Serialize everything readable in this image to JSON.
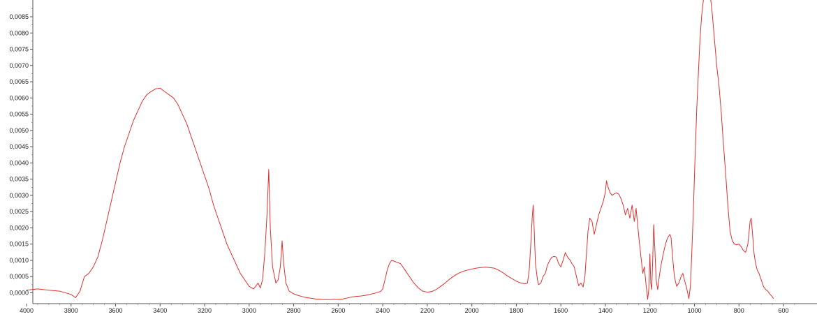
{
  "chart_data": {
    "type": "line",
    "title": "",
    "xlabel": "",
    "ylabel": "",
    "xlim": [
      4000,
      550
    ],
    "ylim": [
      -0.00025,
      0.0095
    ],
    "x_reversed": true,
    "grid": false,
    "legend": "none",
    "x_ticks": [
      4000,
      3800,
      3600,
      3400,
      3200,
      3000,
      2800,
      2600,
      2400,
      2200,
      2000,
      1800,
      1600,
      1400,
      1200,
      1000,
      800,
      600
    ],
    "x_tick_labels": [
      "4000",
      "3800",
      "3600",
      "3400",
      "3200",
      "3000",
      "2800",
      "2600",
      "2400",
      "2200",
      "2000",
      "1800",
      "1600",
      "1400",
      "1200",
      "1000",
      "800",
      "600"
    ],
    "y_ticks": [
      0.0,
      0.0005,
      0.001,
      0.0015,
      0.002,
      0.0025,
      0.003,
      0.0035,
      0.004,
      0.0045,
      0.005,
      0.0055,
      0.006,
      0.0065,
      0.007,
      0.0075,
      0.008,
      0.0085
    ],
    "y_tick_labels": [
      "0,0000",
      "0,0005",
      "0,0010",
      "0,0015",
      "0,0020",
      "0,0025",
      "0,0030",
      "0,0035",
      "0,0040",
      "0,0045",
      "0,0050",
      "0,0055",
      "0,0060",
      "0,0065",
      "0,0070",
      "0,0075",
      "0,0080",
      "0,0085"
    ],
    "series": [
      {
        "color": "#e03030",
        "points": [
          [
            4000,
            8e-05
          ],
          [
            3950,
            0.00012
          ],
          [
            3900,
            8e-05
          ],
          [
            3850,
            5e-05
          ],
          [
            3800,
            -5e-05
          ],
          [
            3780,
            -0.00015
          ],
          [
            3760,
            5e-05
          ],
          [
            3740,
            0.0005
          ],
          [
            3720,
            0.0006
          ],
          [
            3700,
            0.0008
          ],
          [
            3680,
            0.0011
          ],
          [
            3660,
            0.0016
          ],
          [
            3640,
            0.0022
          ],
          [
            3620,
            0.0028
          ],
          [
            3600,
            0.0034
          ],
          [
            3580,
            0.004
          ],
          [
            3560,
            0.0045
          ],
          [
            3540,
            0.0049
          ],
          [
            3520,
            0.0053
          ],
          [
            3500,
            0.0056
          ],
          [
            3480,
            0.0059
          ],
          [
            3460,
            0.0061
          ],
          [
            3440,
            0.0062
          ],
          [
            3420,
            0.00628
          ],
          [
            3400,
            0.0063
          ],
          [
            3380,
            0.0062
          ],
          [
            3360,
            0.0061
          ],
          [
            3340,
            0.006
          ],
          [
            3320,
            0.0058
          ],
          [
            3300,
            0.0055
          ],
          [
            3280,
            0.0052
          ],
          [
            3260,
            0.0048
          ],
          [
            3240,
            0.0044
          ],
          [
            3220,
            0.004
          ],
          [
            3200,
            0.0036
          ],
          [
            3180,
            0.0032
          ],
          [
            3160,
            0.0027
          ],
          [
            3140,
            0.0023
          ],
          [
            3120,
            0.0019
          ],
          [
            3100,
            0.0015
          ],
          [
            3080,
            0.0012
          ],
          [
            3060,
            0.0009
          ],
          [
            3040,
            0.0006
          ],
          [
            3020,
            0.0004
          ],
          [
            3000,
            0.0002
          ],
          [
            2980,
            0.00012
          ],
          [
            2960,
            0.0003
          ],
          [
            2950,
            0.00015
          ],
          [
            2940,
            0.0004
          ],
          [
            2930,
            0.0012
          ],
          [
            2920,
            0.0024
          ],
          [
            2912,
            0.0038
          ],
          [
            2905,
            0.002
          ],
          [
            2895,
            0.0008
          ],
          [
            2880,
            0.0003
          ],
          [
            2870,
            0.0004
          ],
          [
            2860,
            0.0008
          ],
          [
            2852,
            0.0016
          ],
          [
            2845,
            0.0009
          ],
          [
            2835,
            0.0003
          ],
          [
            2820,
            5e-05
          ],
          [
            2800,
            -3e-05
          ],
          [
            2780,
            -8e-05
          ],
          [
            2760,
            -0.00012
          ],
          [
            2740,
            -0.00015
          ],
          [
            2720,
            -0.00017
          ],
          [
            2700,
            -0.00019
          ],
          [
            2680,
            -0.0002
          ],
          [
            2660,
            -0.00021
          ],
          [
            2640,
            -0.00021
          ],
          [
            2620,
            -0.0002
          ],
          [
            2600,
            -0.0002
          ],
          [
            2580,
            -0.00019
          ],
          [
            2560,
            -0.00016
          ],
          [
            2540,
            -0.00013
          ],
          [
            2520,
            -0.00011
          ],
          [
            2500,
            -0.0001
          ],
          [
            2480,
            -8e-05
          ],
          [
            2460,
            -5e-05
          ],
          [
            2440,
            -2e-05
          ],
          [
            2420,
            2e-05
          ],
          [
            2410,
            4e-05
          ],
          [
            2400,
            0.00012
          ],
          [
            2390,
            0.0004
          ],
          [
            2380,
            0.0007
          ],
          [
            2370,
            0.0009
          ],
          [
            2360,
            0.001
          ],
          [
            2350,
            0.00098
          ],
          [
            2340,
            0.00095
          ],
          [
            2320,
            0.0009
          ],
          [
            2300,
            0.0007
          ],
          [
            2280,
            0.0005
          ],
          [
            2260,
            0.0003
          ],
          [
            2240,
            0.00015
          ],
          [
            2220,
            5e-05
          ],
          [
            2200,
            2e-05
          ],
          [
            2180,
            4e-05
          ],
          [
            2160,
            0.0001
          ],
          [
            2140,
            0.0002
          ],
          [
            2120,
            0.0003
          ],
          [
            2100,
            0.00042
          ],
          [
            2080,
            0.00052
          ],
          [
            2060,
            0.0006
          ],
          [
            2040,
            0.00066
          ],
          [
            2020,
            0.0007
          ],
          [
            2000,
            0.00073
          ],
          [
            1980,
            0.00076
          ],
          [
            1960,
            0.00078
          ],
          [
            1940,
            0.00079
          ],
          [
            1920,
            0.00078
          ],
          [
            1900,
            0.00076
          ],
          [
            1880,
            0.0007
          ],
          [
            1860,
            0.00062
          ],
          [
            1840,
            0.00052
          ],
          [
            1820,
            0.00044
          ],
          [
            1800,
            0.00036
          ],
          [
            1780,
            0.0003
          ],
          [
            1760,
            0.00028
          ],
          [
            1750,
            0.0003
          ],
          [
            1742,
            0.0007
          ],
          [
            1735,
            0.0015
          ],
          [
            1728,
            0.0024
          ],
          [
            1724,
            0.0027
          ],
          [
            1720,
            0.002
          ],
          [
            1714,
            0.0009
          ],
          [
            1705,
            0.0004
          ],
          [
            1700,
            0.00025
          ],
          [
            1690,
            0.0003
          ],
          [
            1680,
            0.0005
          ],
          [
            1670,
            0.0006
          ],
          [
            1660,
            0.00085
          ],
          [
            1650,
            0.001
          ],
          [
            1640,
            0.0011
          ],
          [
            1630,
            0.00112
          ],
          [
            1620,
            0.0011
          ],
          [
            1610,
            0.0009
          ],
          [
            1600,
            0.0008
          ],
          [
            1590,
            0.001
          ],
          [
            1580,
            0.00124
          ],
          [
            1570,
            0.0011
          ],
          [
            1560,
            0.00102
          ],
          [
            1550,
            0.0009
          ],
          [
            1540,
            0.0008
          ],
          [
            1530,
            0.0005
          ],
          [
            1520,
            0.00022
          ],
          [
            1510,
            0.0003
          ],
          [
            1500,
            0.00018
          ],
          [
            1492,
            0.0005
          ],
          [
            1485,
            0.0012
          ],
          [
            1478,
            0.0019
          ],
          [
            1470,
            0.0023
          ],
          [
            1460,
            0.0022
          ],
          [
            1450,
            0.0018
          ],
          [
            1440,
            0.0021
          ],
          [
            1430,
            0.0024
          ],
          [
            1420,
            0.0026
          ],
          [
            1410,
            0.0028
          ],
          [
            1400,
            0.0031
          ],
          [
            1395,
            0.00345
          ],
          [
            1390,
            0.0033
          ],
          [
            1380,
            0.0031
          ],
          [
            1370,
            0.003
          ],
          [
            1360,
            0.00305
          ],
          [
            1350,
            0.00308
          ],
          [
            1340,
            0.00304
          ],
          [
            1330,
            0.0029
          ],
          [
            1320,
            0.0027
          ],
          [
            1310,
            0.0024
          ],
          [
            1300,
            0.0026
          ],
          [
            1290,
            0.0023
          ],
          [
            1280,
            0.0027
          ],
          [
            1270,
            0.0022
          ],
          [
            1262,
            0.0026
          ],
          [
            1255,
            0.0021
          ],
          [
            1248,
            0.0016
          ],
          [
            1240,
            0.0011
          ],
          [
            1232,
            0.0006
          ],
          [
            1225,
            0.0008
          ],
          [
            1218,
            0.0003
          ],
          [
            1210,
            -0.0002
          ],
          [
            1205,
            0.0001
          ],
          [
            1200,
            0.0012
          ],
          [
            1196,
            0.0003
          ],
          [
            1192,
            0.0001
          ],
          [
            1187,
            0.0011
          ],
          [
            1183,
            0.0021
          ],
          [
            1178,
            0.0014
          ],
          [
            1172,
            0.0004
          ],
          [
            1165,
            0.0001
          ],
          [
            1158,
            0.0005
          ],
          [
            1150,
            0.00085
          ],
          [
            1140,
            0.0012
          ],
          [
            1130,
            0.0015
          ],
          [
            1120,
            0.0017
          ],
          [
            1110,
            0.0018
          ],
          [
            1105,
            0.0017
          ],
          [
            1098,
            0.0011
          ],
          [
            1090,
            0.0005
          ],
          [
            1080,
            0.0002
          ],
          [
            1070,
            0.0003
          ],
          [
            1060,
            0.0005
          ],
          [
            1052,
            0.0006
          ],
          [
            1045,
            0.0004
          ],
          [
            1035,
            0.00015
          ],
          [
            1025,
            -0.00018
          ],
          [
            1018,
            0.0002
          ],
          [
            1012,
            0.0012
          ],
          [
            1005,
            0.0025
          ],
          [
            998,
            0.004
          ],
          [
            990,
            0.0056
          ],
          [
            982,
            0.0068
          ],
          [
            975,
            0.0078
          ],
          [
            968,
            0.0085
          ],
          [
            960,
            0.009
          ],
          [
            952,
            0.0093
          ],
          [
            945,
            0.0094
          ],
          [
            940,
            0.0095
          ],
          [
            935,
            0.0094
          ],
          [
            928,
            0.0091
          ],
          [
            920,
            0.0086
          ],
          [
            910,
            0.0078
          ],
          [
            900,
            0.007
          ],
          [
            890,
            0.0064
          ],
          [
            880,
            0.0056
          ],
          [
            870,
            0.0046
          ],
          [
            860,
            0.0037
          ],
          [
            850,
            0.0027
          ],
          [
            840,
            0.0019
          ],
          [
            830,
            0.0016
          ],
          [
            820,
            0.0015
          ],
          [
            810,
            0.00148
          ],
          [
            800,
            0.0015
          ],
          [
            790,
            0.00142
          ],
          [
            780,
            0.0013
          ],
          [
            770,
            0.00125
          ],
          [
            760,
            0.0015
          ],
          [
            750,
            0.0022
          ],
          [
            745,
            0.0023
          ],
          [
            740,
            0.0019
          ],
          [
            732,
            0.0012
          ],
          [
            725,
            0.0009
          ],
          [
            718,
            0.0007
          ],
          [
            710,
            0.0006
          ],
          [
            700,
            0.0004
          ],
          [
            690,
            0.0002
          ],
          [
            680,
            0.0001
          ],
          [
            670,
            5e-05
          ],
          [
            660,
            -5e-05
          ],
          [
            650,
            -0.00012
          ],
          [
            645,
            -0.00018
          ]
        ]
      }
    ]
  }
}
